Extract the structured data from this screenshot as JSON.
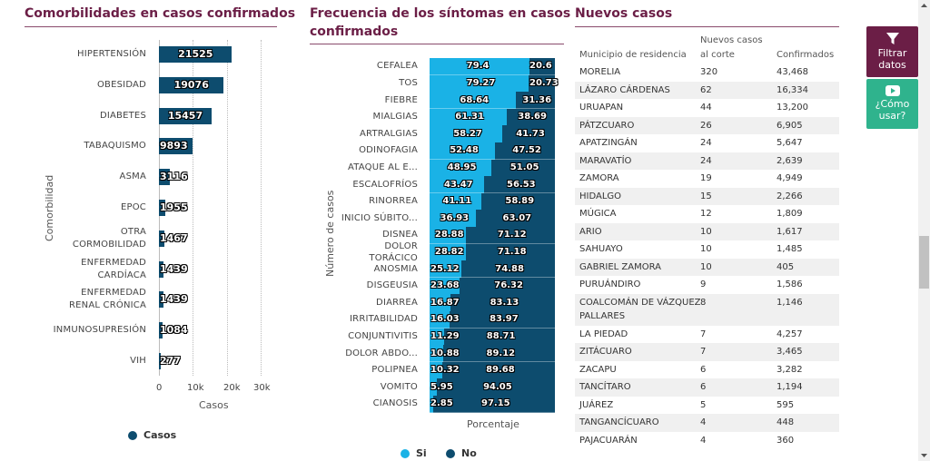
{
  "comorbilidades": {
    "title": "Comorbilidades en casos confirmados",
    "y_axis_title": "Comorbilidad",
    "x_axis_title": "Casos",
    "x_ticks": [
      "0",
      "10k",
      "20k",
      "30k"
    ],
    "legend": "Casos",
    "bar_color": "#0d4c6e"
  },
  "sintomas": {
    "title_line1": "Frecuencia de los síntomas en casos",
    "title_line2": "confirmados",
    "y_axis_title": "Número de casos",
    "x_axis_title": "Porcentaje",
    "legend_si": "Si",
    "legend_no": "No",
    "color_si": "#1ab2e6",
    "color_no": "#0d4c6e"
  },
  "chart_data": [
    {
      "type": "bar",
      "orientation": "horizontal",
      "title": "Comorbilidades en casos confirmados",
      "ylabel": "Comorbilidad",
      "xlabel": "Casos",
      "xlim": [
        0,
        30000
      ],
      "categories": [
        {
          "line1": "HIPERTENSIÓN",
          "line2": ""
        },
        {
          "line1": "OBESIDAD",
          "line2": ""
        },
        {
          "line1": "DIABETES",
          "line2": ""
        },
        {
          "line1": "TABAQUISMO",
          "line2": ""
        },
        {
          "line1": "ASMA",
          "line2": ""
        },
        {
          "line1": "EPOC",
          "line2": ""
        },
        {
          "line1": "OTRA",
          "line2": "CORMOBILIDAD"
        },
        {
          "line1": "ENFERMEDAD",
          "line2": "CARDÍACA"
        },
        {
          "line1": "ENFERMEDAD",
          "line2": "RENAL CRÓNICA"
        },
        {
          "line1": "INMUNOSUPRESIÓN",
          "line2": ""
        },
        {
          "line1": "VIH",
          "line2": ""
        }
      ],
      "values": [
        21525,
        19076,
        15457,
        9893,
        3116,
        1955,
        1467,
        1439,
        1439,
        1084,
        277
      ],
      "legend": "bottom"
    },
    {
      "type": "bar",
      "orientation": "horizontal",
      "stacked": true,
      "percent": true,
      "title": "Frecuencia de los síntomas en casos confirmados",
      "ylabel": "Número de casos",
      "xlabel": "Porcentaje",
      "categories": [
        {
          "line1": "CEFALEA",
          "line2": ""
        },
        {
          "line1": "TOS",
          "line2": ""
        },
        {
          "line1": "FIEBRE",
          "line2": ""
        },
        {
          "line1": "MIALGIAS",
          "line2": ""
        },
        {
          "line1": "ARTRALGIAS",
          "line2": ""
        },
        {
          "line1": "ODINOFAGIA",
          "line2": ""
        },
        {
          "line1": "ATAQUE AL E...",
          "line2": ""
        },
        {
          "line1": "ESCALOFRÍOS",
          "line2": ""
        },
        {
          "line1": "RINORREA",
          "line2": ""
        },
        {
          "line1": "INICIO SÚBITO...",
          "line2": ""
        },
        {
          "line1": "DISNEA",
          "line2": ""
        },
        {
          "line1": "DOLOR",
          "line2": "TORÁCICO"
        },
        {
          "line1": "ANOSMIA",
          "line2": ""
        },
        {
          "line1": "DISGEUSIA",
          "line2": ""
        },
        {
          "line1": "DIARREA",
          "line2": ""
        },
        {
          "line1": "IRRITABILIDAD",
          "line2": ""
        },
        {
          "line1": "CONJUNTIVITIS",
          "line2": ""
        },
        {
          "line1": "DOLOR ABDO...",
          "line2": ""
        },
        {
          "line1": "POLIPNEA",
          "line2": ""
        },
        {
          "line1": "VOMITO",
          "line2": ""
        },
        {
          "line1": "CIANOSIS",
          "line2": ""
        }
      ],
      "series": [
        {
          "name": "Si",
          "values": [
            "79.4",
            "79.27",
            "68.64",
            "61.31",
            "58.27",
            "52.48",
            "48.95",
            "43.47",
            "41.11",
            "36.93",
            "28.88",
            "28.82",
            "25.12",
            "23.68",
            "16.87",
            "16.03",
            "11.29",
            "10.88",
            "10.32",
            "5.95",
            "2.85"
          ]
        },
        {
          "name": "No",
          "values": [
            "20.6",
            "20.73",
            "31.36",
            "38.69",
            "41.73",
            "47.52",
            "51.05",
            "56.53",
            "58.89",
            "63.07",
            "71.12",
            "71.18",
            "74.88",
            "76.32",
            "83.13",
            "83.97",
            "88.71",
            "89.12",
            "89.68",
            "94.05",
            "97.15"
          ]
        }
      ],
      "legend": "bottom"
    }
  ],
  "nuevos_casos": {
    "title": "Nuevos casos",
    "col_municipio": "Municipio de residencia",
    "col_nuevos_line1": "Nuevos casos",
    "col_nuevos_line2": "al corte",
    "col_confirmados": "Confirmados",
    "rows": [
      {
        "municipio": "MORELIA",
        "municipio2": "",
        "nuevos": "320",
        "confirmados": "43,468"
      },
      {
        "municipio": "LÁZARO CÁRDENAS",
        "municipio2": "",
        "nuevos": "62",
        "confirmados": "16,334"
      },
      {
        "municipio": "URUAPAN",
        "municipio2": "",
        "nuevos": "44",
        "confirmados": "13,200"
      },
      {
        "municipio": "PÁTZCUARO",
        "municipio2": "",
        "nuevos": "26",
        "confirmados": "6,905"
      },
      {
        "municipio": "APATZINGÁN",
        "municipio2": "",
        "nuevos": "24",
        "confirmados": "5,647"
      },
      {
        "municipio": "MARAVATÍO",
        "municipio2": "",
        "nuevos": "24",
        "confirmados": "2,639"
      },
      {
        "municipio": "ZAMORA",
        "municipio2": "",
        "nuevos": "19",
        "confirmados": "4,949"
      },
      {
        "municipio": "HIDALGO",
        "municipio2": "",
        "nuevos": "15",
        "confirmados": "2,266"
      },
      {
        "municipio": "MÚGICA",
        "municipio2": "",
        "nuevos": "12",
        "confirmados": "1,809"
      },
      {
        "municipio": "ARIO",
        "municipio2": "",
        "nuevos": "10",
        "confirmados": "1,617"
      },
      {
        "municipio": "SAHUAYO",
        "municipio2": "",
        "nuevos": "10",
        "confirmados": "1,485"
      },
      {
        "municipio": "GABRIEL ZAMORA",
        "municipio2": "",
        "nuevos": "10",
        "confirmados": "405"
      },
      {
        "municipio": "PURUÁNDIRO",
        "municipio2": "",
        "nuevos": "9",
        "confirmados": "1,586"
      },
      {
        "municipio": "COALCOMÁN DE VÁZQUEZ",
        "municipio2": "PALLARES",
        "nuevos": "8",
        "confirmados": "1,146"
      },
      {
        "municipio": "LA PIEDAD",
        "municipio2": "",
        "nuevos": "7",
        "confirmados": "4,257"
      },
      {
        "municipio": "ZITÁCUARO",
        "municipio2": "",
        "nuevos": "7",
        "confirmados": "3,465"
      },
      {
        "municipio": "ZACAPU",
        "municipio2": "",
        "nuevos": "6",
        "confirmados": "3,282"
      },
      {
        "municipio": "TANCÍTARO",
        "municipio2": "",
        "nuevos": "6",
        "confirmados": "1,194"
      },
      {
        "municipio": "JUÁREZ",
        "municipio2": "",
        "nuevos": "5",
        "confirmados": "595"
      },
      {
        "municipio": "TANGANCÍCUARO",
        "municipio2": "",
        "nuevos": "4",
        "confirmados": "448"
      },
      {
        "municipio": "PAJACUARÁN",
        "municipio2": "",
        "nuevos": "4",
        "confirmados": "360"
      }
    ]
  },
  "sidebar": {
    "filter_line1": "Filtrar",
    "filter_line2": "datos",
    "filter_icon": "filter-icon",
    "help_line1": "¿Cómo",
    "help_line2": "usar?",
    "help_icon": "video-play-icon",
    "filter_color": "#6b1e46",
    "help_color": "#2fb38d"
  }
}
